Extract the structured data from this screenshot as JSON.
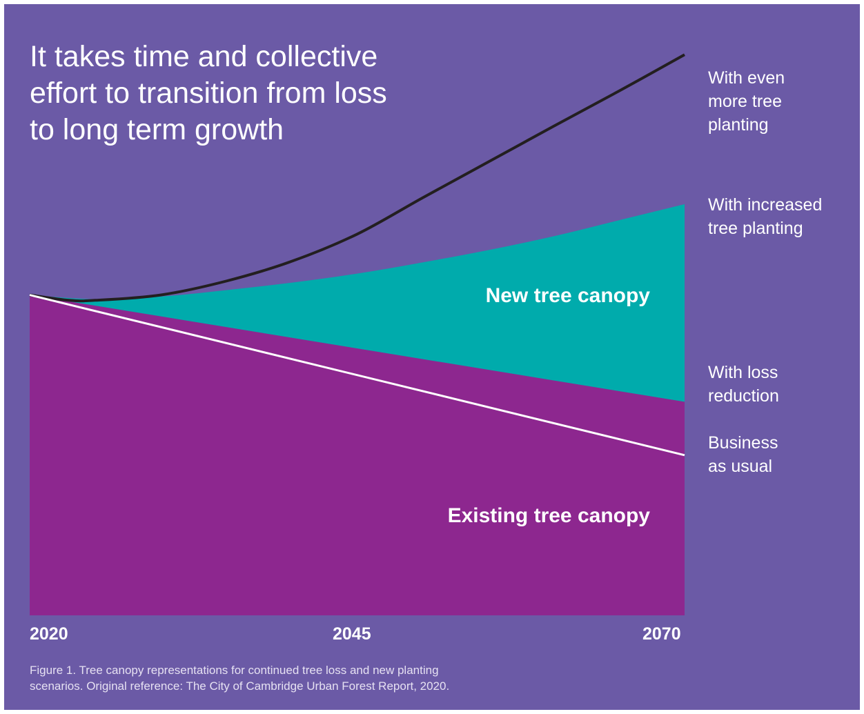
{
  "title": "It takes time and collective\neffort to transition from loss\nto long term growth",
  "caption": "Figure 1. Tree canopy representations for continued tree loss and new planting\nscenarios. Original reference: The City of Cambridge Urban Forest Report, 2020.",
  "colors": {
    "background": "#6b5aa6",
    "existing_canopy": "#8d278f",
    "new_canopy": "#00abac",
    "even_more_line": "#231f20",
    "business_as_usual_line": "#ffffff",
    "text": "#ffffff"
  },
  "chart_data": {
    "type": "area",
    "x": [
      2020,
      2045,
      2070
    ],
    "x_tick_labels": [
      "2020",
      "2045",
      "2070"
    ],
    "xlim": [
      2020,
      2070
    ],
    "ylim": [
      0,
      100
    ],
    "grid": false,
    "series": [
      {
        "name": "With even\nmore tree\nplanting",
        "style": "line",
        "x": [
          2020,
          2023,
          2025,
          2030,
          2035,
          2040,
          2045,
          2050,
          2055,
          2060,
          2065,
          2070
        ],
        "y": [
          60,
          59,
          59,
          60,
          62.6,
          66.3,
          71.4,
          78.2,
          84.9,
          91.6,
          98.2,
          105
        ]
      },
      {
        "name": "With increased\ntree planting",
        "style": "area-top",
        "x": [
          2020,
          2025,
          2030,
          2035,
          2040,
          2045,
          2050,
          2055,
          2060,
          2065,
          2070
        ],
        "y": [
          60,
          59.2,
          59.7,
          60.9,
          62.3,
          64.0,
          66.1,
          68.4,
          71.0,
          74.0,
          77
        ]
      },
      {
        "name": "With loss\nreduction",
        "style": "area-top",
        "x": [
          2020,
          2070
        ],
        "y": [
          60,
          40
        ]
      },
      {
        "name": "Business\nas usual",
        "style": "line",
        "x": [
          2020,
          2070
        ],
        "y": [
          60,
          30
        ]
      }
    ],
    "annotations": [
      {
        "text": "New tree canopy"
      },
      {
        "text": "Existing tree canopy"
      }
    ]
  }
}
